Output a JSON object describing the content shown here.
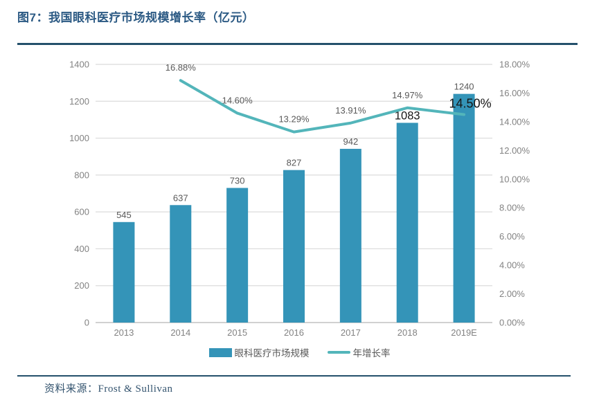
{
  "header": {
    "title": "图7：我国眼科医疗市场规模增长率（亿元）"
  },
  "legend": {
    "bar_label": "眼科医疗市场规模",
    "line_label": "年增长率"
  },
  "footer": {
    "source_prefix": "资料来源：",
    "source_value": "Frost & Sullivan"
  },
  "colors": {
    "bar": "#3494B8",
    "line": "#53B5BA",
    "title": "#2C5A84",
    "rule": "#24506B",
    "grid": "#DBDBDB",
    "axis_line": "#C2C2C2",
    "tick_text": "#828282",
    "data_label": "#595959",
    "emphasis_label": "#161616"
  },
  "chart_data": {
    "type": "bar",
    "subtype": "combo bar+line, dual axis",
    "title": "图7：我国眼科医疗市场规模增长率（亿元）",
    "categories": [
      "2013",
      "2014",
      "2015",
      "2016",
      "2017",
      "2018",
      "2019E"
    ],
    "series": [
      {
        "name": "眼科医疗市场规模",
        "type": "bar",
        "axis": "left",
        "values": [
          545,
          637,
          730,
          827,
          942,
          1083,
          1240
        ],
        "labels": [
          "545",
          "637",
          "730",
          "827",
          "942",
          "1083",
          "1240"
        ],
        "emphasized_labels": [
          "1083"
        ]
      },
      {
        "name": "年增长率",
        "type": "line",
        "axis": "right",
        "values": [
          null,
          16.88,
          14.6,
          13.29,
          13.91,
          14.97,
          14.5
        ],
        "labels": [
          "",
          "16.88%",
          "14.60%",
          "13.29%",
          "13.91%",
          "14.97%",
          "14.50%"
        ],
        "emphasized_labels": [
          "14.50%"
        ]
      }
    ],
    "left_axis": {
      "min": 0,
      "max": 1400,
      "step": 200,
      "ticks": [
        "0",
        "200",
        "400",
        "600",
        "800",
        "1000",
        "1200",
        "1400"
      ]
    },
    "right_axis": {
      "min": 0,
      "max": 18,
      "step": 2,
      "ticks": [
        "0.00%",
        "2.00%",
        "4.00%",
        "6.00%",
        "8.00%",
        "10.00%",
        "12.00%",
        "14.00%",
        "16.00%",
        "18.00%"
      ]
    },
    "grid": "horizontal gridlines on",
    "legend_position": "bottom"
  }
}
